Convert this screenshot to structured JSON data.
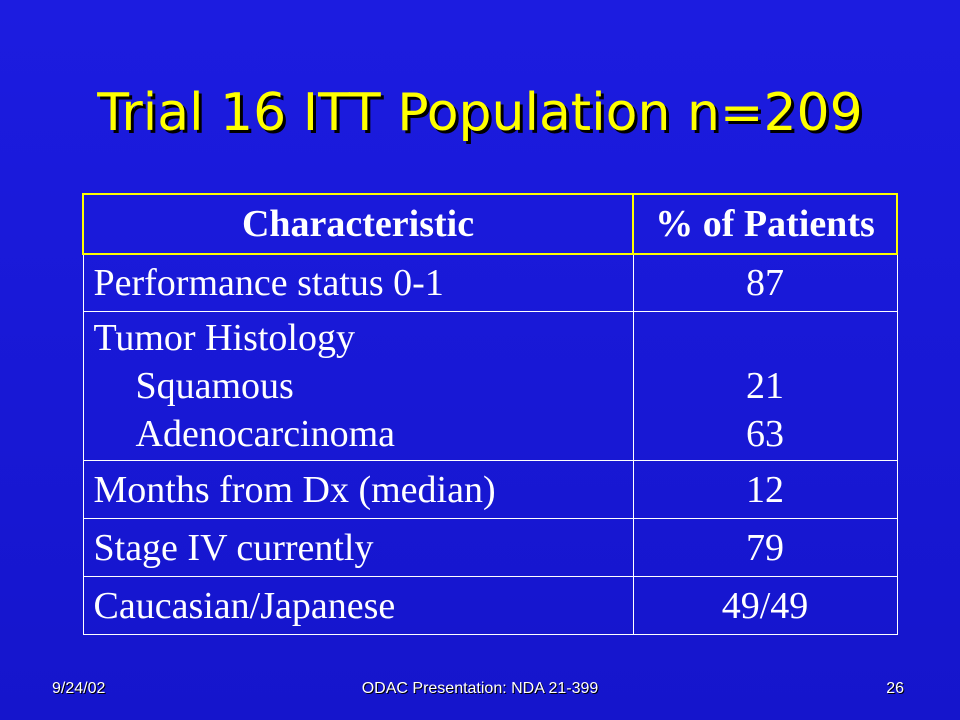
{
  "slide": {
    "title": "Trial 16 ITT Population n=209"
  },
  "table": {
    "headers": [
      "Characteristic",
      "% of Patients"
    ],
    "rows": [
      {
        "label": "Performance status 0-1",
        "value": "87"
      },
      {
        "label": "Tumor Histology",
        "value": ""
      },
      {
        "label": "Squamous",
        "value": "21"
      },
      {
        "label": "Adenocarcinoma",
        "value": "63"
      },
      {
        "label": "Months from Dx (median)",
        "value": "12"
      },
      {
        "label": "Stage IV currently",
        "value": "79"
      },
      {
        "label": "Caucasian/Japanese",
        "value": "49/49"
      }
    ]
  },
  "footer": {
    "date": "9/24/02",
    "center": "ODAC Presentation: NDA 21-399",
    "page": "26"
  },
  "colors": {
    "background": "#1a1ad6",
    "title": "#ffff00",
    "header_border": "#ffff00",
    "text": "#ffffff"
  }
}
